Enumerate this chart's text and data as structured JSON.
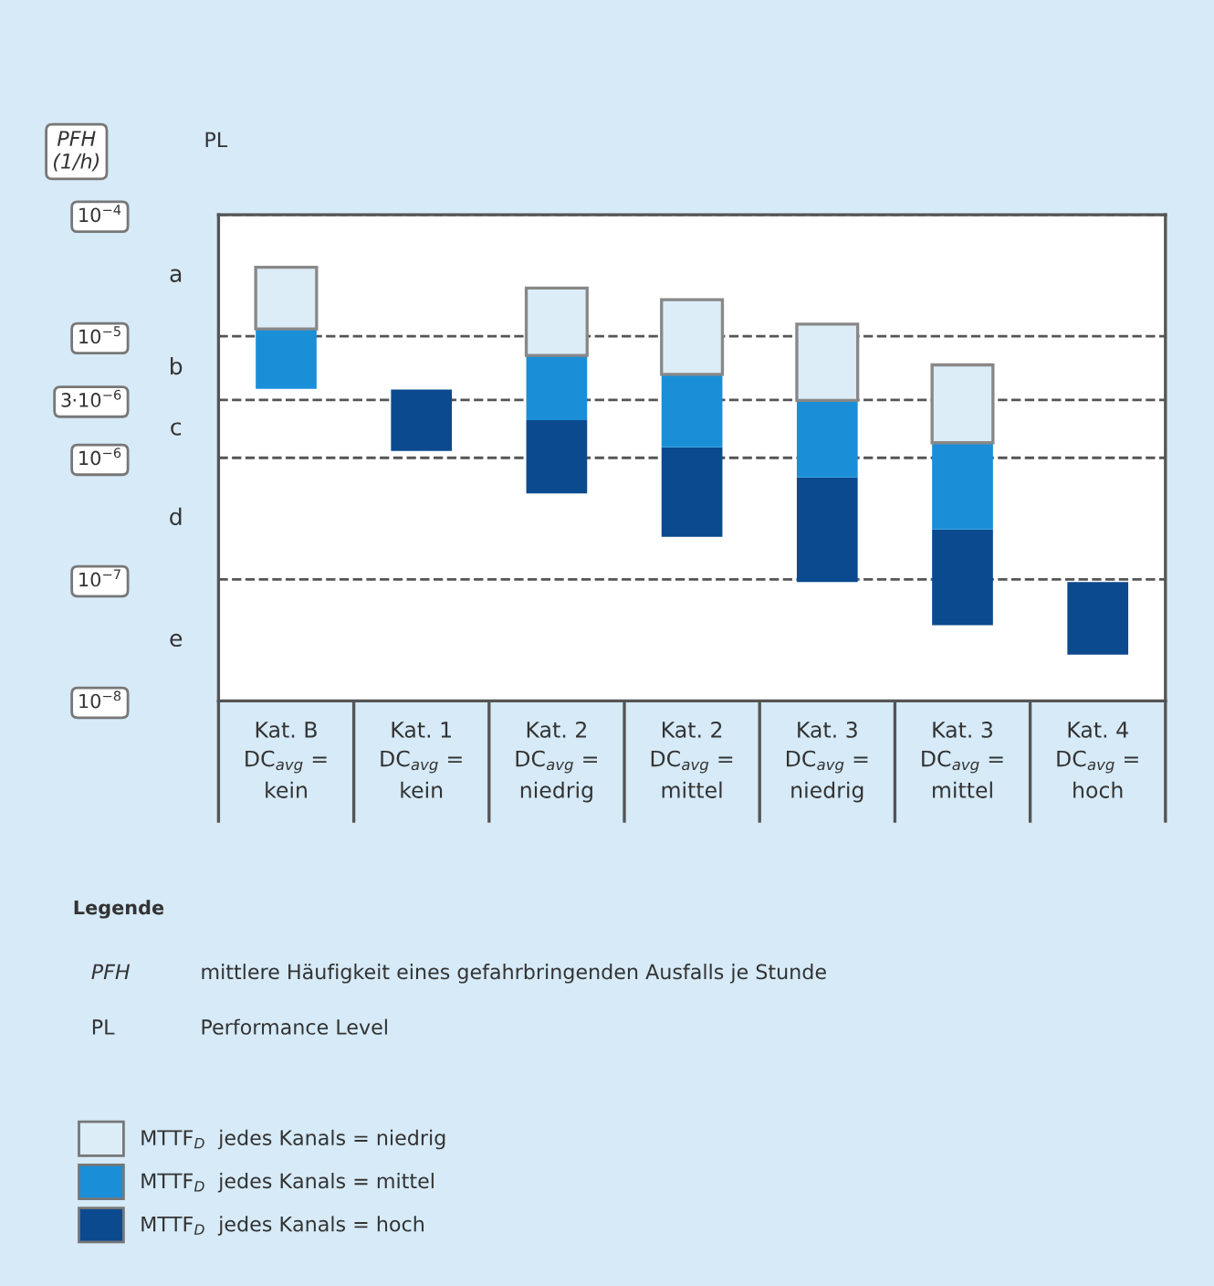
{
  "chart_data": {
    "type": "bar",
    "log": true,
    "ylabel": "PFH\n(1/h)",
    "categories": [
      "Kat. B\nDC$_{avg}$ =\nkein",
      "Kat. 1\nDC$_{avg}$ =\nkein",
      "Kat. 2\nDC$_{avg}$ =\nniedrig",
      "Kat. 2\nDC$_{avg}$ =\nmittel",
      "Kat. 3\nDC$_{avg}$ =\nniedrig",
      "Kat. 3\nDC$_{avg}$ =\nmittel",
      "Kat. 4\nDC$_{avg}$ =\nhoch"
    ],
    "series": [
      {
        "name": "MTTF$_{D}$  jedes Kanals = hoch",
        "color": "#0b4a8f",
        "base": [
          null,
          1.14e-06,
          5.1e-07,
          2.24e-07,
          9.5e-08,
          4.2e-08,
          2.4e-08
        ],
        "values": [
          null,
          2.5e-06,
          1.53e-06,
          9.96e-07,
          5.95e-07,
          2.15e-07,
          7.1e-08
        ]
      },
      {
        "name": "MTTF$_{D}$  jedes Kanals = mittel",
        "color": "#1a8fd8",
        "base": [
          3.7e-06,
          null,
          2.04e-06,
          1.22e-06,
          6.9e-07,
          2.57e-07,
          null
        ],
        "values": [
          7.8e-06,
          null,
          4.92e-06,
          3.64e-06,
          2.28e-06,
          1.073e-06,
          null
        ]
      },
      {
        "name": "MTTF$_{D}$  jedes Kanals = niedrig",
        "color": "#dcedf8",
        "base": [
          1.15e-05,
          null,
          6.96e-06,
          4.86e-06,
          2.97e-06,
          1.33e-06,
          null
        ],
        "values": [
          2.55e-05,
          null,
          1.8e-05,
          1.514e-05,
          9.63e-06,
          4.49e-06,
          null
        ]
      }
    ],
    "ylim": [
      1e-08,
      0.0001
    ],
    "yticks": [
      {
        "value": 1e-08,
        "label": "10$^{−8}$"
      },
      {
        "value": 1e-07,
        "label": "10$^{−7}$"
      },
      {
        "value": 1e-06,
        "label": "10$^{−6}$"
      },
      {
        "value": 3e-06,
        "label": "3·10$^{−6}$"
      },
      {
        "value": 1e-05,
        "label": "10$^{−5}$"
      },
      {
        "value": 0.0001,
        "label": "10$^{−4}$"
      }
    ],
    "grid": "y",
    "line_style": "dashed",
    "legend": "bottom",
    "legend_title": "Legende",
    "annotations": [
      "a",
      "b",
      "c",
      "d",
      "e",
      "PL",
      "PFH",
      "mittlere Häufigkeit eines gefahrbringenden Ausfalls je Stunde",
      "PL",
      "Performance Level"
    ]
  }
}
